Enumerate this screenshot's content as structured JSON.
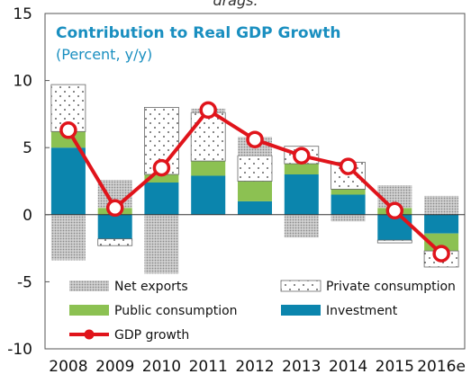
{
  "top_caption": "drags.",
  "colors": {
    "title": "#1a8fc0",
    "net_exports": "#b8b8b8",
    "private_consumption": "#ffffff",
    "public_consumption": "#8cc152",
    "investment": "#0b85ad",
    "gdp_growth": "#e0141b"
  },
  "chart_data": {
    "type": "bar",
    "title": "Contribution to  Real GDP Growth",
    "subtitle": "(Percent, y/y)",
    "categories": [
      "2008",
      "2009",
      "2010",
      "2011",
      "2012",
      "2013",
      "2014",
      "2015",
      "2016e"
    ],
    "ylim": [
      -10,
      15
    ],
    "yticks": [
      15,
      10,
      5,
      0,
      -5,
      -10
    ],
    "stacked": true,
    "grid": false,
    "legend_position": "bottom-inside",
    "series": [
      {
        "name": "Investment",
        "kind": "bar",
        "values": [
          5.0,
          -1.8,
          2.4,
          2.9,
          1.0,
          3.0,
          1.5,
          -1.9,
          -1.4
        ]
      },
      {
        "name": "Public consumption",
        "kind": "bar",
        "values": [
          1.2,
          0.5,
          0.6,
          1.1,
          1.5,
          0.8,
          0.4,
          0.5,
          -1.3
        ]
      },
      {
        "name": "Private consumption",
        "kind": "bar",
        "values": [
          3.5,
          -0.5,
          5.0,
          3.6,
          1.9,
          1.3,
          2.0,
          -0.2,
          -1.2
        ]
      },
      {
        "name": "Net exports",
        "kind": "bar",
        "values": [
          -3.4,
          2.1,
          -4.4,
          0.3,
          1.4,
          -1.7,
          -0.5,
          1.7,
          1.4
        ]
      },
      {
        "name": "GDP growth",
        "kind": "line",
        "values": [
          6.3,
          0.5,
          3.5,
          7.8,
          5.6,
          4.4,
          3.6,
          0.3,
          -2.9
        ]
      }
    ],
    "legend": [
      {
        "name": "Net exports",
        "swatch": "net_exports"
      },
      {
        "name": "Private consumption",
        "swatch": "private_consumption"
      },
      {
        "name": "Public consumption",
        "swatch": "public_consumption"
      },
      {
        "name": "Investment",
        "swatch": "investment"
      },
      {
        "name": "GDP growth",
        "swatch": "gdp_growth"
      }
    ]
  }
}
